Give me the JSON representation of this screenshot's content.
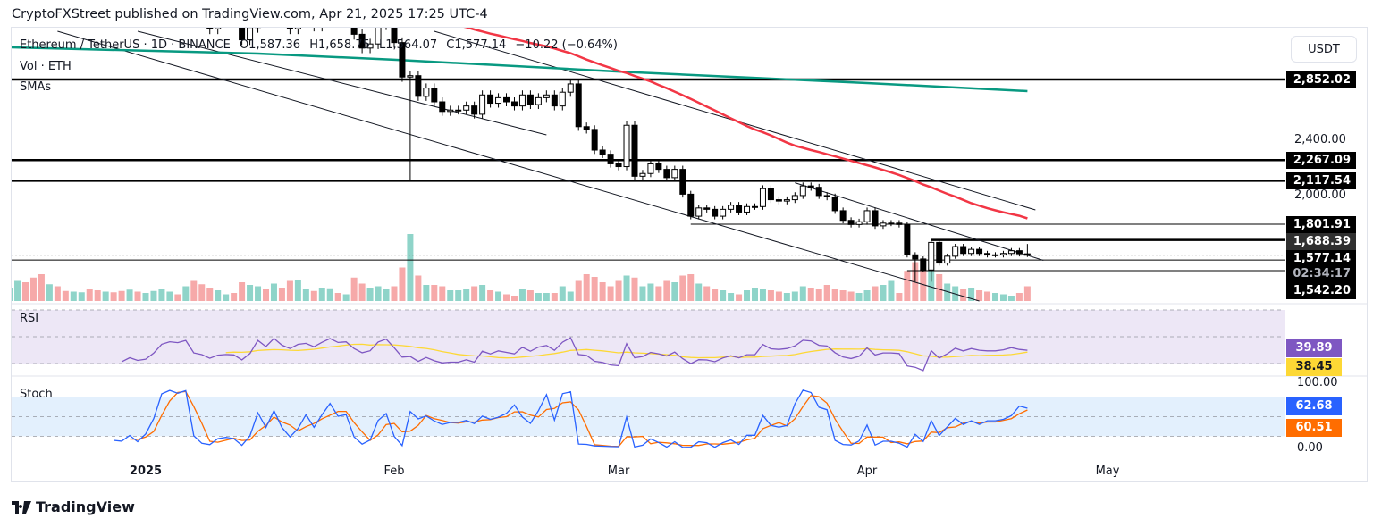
{
  "publisher_line": "CryptoFXStreet published on TradingView.com, Apr 21, 2025 17:25 UTC-4",
  "legend": {
    "symbol": "Ethereum / TetherUS · 1D · BINANCE",
    "open": "O1,587.36",
    "high": "H1,658.75",
    "low": "L1,564.07",
    "close": "C1,577.14",
    "change": "−10.22 (−0.64%)",
    "volume": "Vol · ETH",
    "smas": "SMAs",
    "rsi": "RSI",
    "stoch": "Stoch"
  },
  "currency_button": "USDT",
  "brand": "TradingView",
  "price_ticks": [
    "2,400.00",
    "2,000.00"
  ],
  "price_labels": [
    {
      "text": "2,852.02",
      "price": 2852.02,
      "style": "dark"
    },
    {
      "text": "2,267.09",
      "price": 2267.09,
      "style": "dark"
    },
    {
      "text": "2,117.54",
      "price": 2117.54,
      "style": "dark"
    },
    {
      "text": "1,801.91",
      "price": 1801.91,
      "style": "dark"
    },
    {
      "text": "1,688.39",
      "price": 1688.39,
      "style": "grey"
    },
    {
      "text": "1,577.14",
      "price": 1577.14,
      "style": "dark"
    },
    {
      "text": "02:34:17",
      "price": 1577.14,
      "style": "countdown"
    },
    {
      "text": "1,542.20",
      "price": 1542.2,
      "style": "dark"
    }
  ],
  "rsi_labels": {
    "rsi": "39.89",
    "rsi_ma": "38.45"
  },
  "stoch_labels": {
    "top": "100.00",
    "k": "62.68",
    "d": "60.51",
    "bottom": "0.00"
  },
  "time_axis": [
    {
      "label": "2025",
      "date": "2025-01-01",
      "bold": true
    },
    {
      "label": "Feb",
      "date": "2025-02-01"
    },
    {
      "label": "Mar",
      "date": "2025-03-01"
    },
    {
      "label": "Apr",
      "date": "2025-04-01"
    },
    {
      "label": "May",
      "date": "2025-05-01"
    }
  ],
  "colors": {
    "up_volume": "#8fd4c9",
    "down_volume": "#f6a9a9",
    "sma50": "#f23645",
    "sma200": "#089981",
    "rsi": "#7e57c2",
    "rsi_ma": "#fdd835",
    "stoch_k": "#2962ff",
    "stoch_d": "#ff6d00",
    "rsi_band": "#ede7f6",
    "stoch_band": "#e3f0fd"
  },
  "chart_data": {
    "type": "candlestick",
    "symbol": "ETHUSDT",
    "interval": "1D",
    "scale": "linear",
    "months": [
      {
        "month": "2024-12",
        "first_day": 15,
        "close": [
          3960,
          4000,
          3890,
          3630,
          3420,
          3630,
          3330,
          3290,
          3420,
          3490,
          3480,
          3330,
          3390,
          3360,
          3350,
          3420,
          3330
        ],
        "volume": [
          20,
          30,
          28,
          35,
          40,
          25,
          22,
          15,
          14,
          13,
          18,
          16,
          14,
          13,
          15,
          17,
          14
        ]
      },
      {
        "month": "2025-01",
        "first_day": 1,
        "close": [
          3350,
          3450,
          3610,
          3660,
          3640,
          3680,
          3380,
          3330,
          3220,
          3270,
          3280,
          3270,
          3140,
          3230,
          3450,
          3310,
          3470,
          3310,
          3220,
          3300,
          3320,
          3240,
          3320,
          3390,
          3310,
          3320,
          3180,
          3080,
          3110,
          3250,
          3300
        ],
        "volume": [
          12,
          15,
          18,
          14,
          10,
          22,
          30,
          25,
          20,
          16,
          10,
          12,
          28,
          24,
          22,
          18,
          26,
          20,
          30,
          32,
          18,
          15,
          20,
          19,
          12,
          10,
          35,
          26,
          20,
          22,
          18
        ]
      },
      {
        "month": "2025-02",
        "first_day": 1,
        "close": [
          3120,
          2870,
          2880,
          2730,
          2790,
          2690,
          2620,
          2630,
          2630,
          2660,
          2600,
          2740,
          2680,
          2720,
          2690,
          2660,
          2740,
          2670,
          2720,
          2740,
          2660,
          2760,
          2820,
          2510,
          2490,
          2340,
          2310,
          2240
        ],
        "volume": [
          22,
          50,
          100,
          38,
          24,
          24,
          22,
          16,
          16,
          18,
          22,
          24,
          16,
          14,
          10,
          8,
          18,
          16,
          12,
          12,
          12,
          22,
          14,
          30,
          40,
          36,
          28,
          22
        ]
      },
      {
        "month": "2025-03",
        "first_day": 1,
        "close": [
          2220,
          2520,
          2150,
          2170,
          2240,
          2200,
          2140,
          2200,
          2020,
          1860,
          1920,
          1910,
          1860,
          1910,
          1940,
          1890,
          1930,
          1930,
          2060,
          1980,
          1970,
          1980,
          2010,
          2080,
          2070,
          2010,
          2000,
          1900,
          1830,
          1800,
          1820
        ],
        "volume": [
          30,
          38,
          35,
          22,
          26,
          22,
          30,
          28,
          38,
          40,
          26,
          22,
          18,
          16,
          12,
          10,
          16,
          20,
          18,
          16,
          14,
          12,
          14,
          22,
          20,
          18,
          24,
          18,
          16,
          14,
          12
        ]
      },
      {
        "month": "2025-04",
        "first_day": 1,
        "close": [
          1900,
          1790,
          1810,
          1810,
          1800,
          1580,
          1550,
          1470,
          1670,
          1520,
          1570,
          1640,
          1590,
          1620,
          1590,
          1580,
          1580,
          1590,
          1610,
          1587.36,
          1577.14
        ],
        "volume": [
          16,
          22,
          24,
          30,
          12,
          45,
          58,
          48,
          50,
          40,
          26,
          22,
          18,
          20,
          16,
          14,
          12,
          10,
          8,
          12,
          22
        ]
      }
    ],
    "overrides": {
      "2025-02-03": {
        "low": 2120
      },
      "2025-04-07": {
        "low": 1385
      },
      "2025-04-09": {
        "low": 1385
      },
      "2025-04-21": {
        "open": 1587.36,
        "high": 1658.75,
        "low": 1564.07,
        "close": 1577.14
      }
    },
    "sma200": [
      [
        "2024-12-15",
        3085
      ],
      [
        "2025-01-15",
        3040
      ],
      [
        "2025-02-01",
        2995
      ],
      [
        "2025-03-01",
        2910
      ],
      [
        "2025-04-01",
        2826
      ],
      [
        "2025-04-21",
        2768
      ]
    ],
    "horizontal_levels": [
      {
        "price": 2852.02,
        "from": null,
        "weight": "thick"
      },
      {
        "price": 2267.09,
        "from": null,
        "weight": "thick"
      },
      {
        "price": 2117.54,
        "from": null,
        "weight": "thick"
      },
      {
        "price": 1801.91,
        "from": "2025-03-10",
        "weight": "thin"
      },
      {
        "price": 1688.39,
        "from": "2025-04-09",
        "weight": "thick"
      },
      {
        "price": 1542.2,
        "from": null,
        "weight": "thin"
      },
      {
        "price": 1465,
        "from": "2025-04-06",
        "weight": "thin"
      }
    ],
    "trendlines": [
      {
        "from": [
          "2024-12-21",
          3202
        ],
        "to": [
          "2025-04-15",
          1245
        ]
      },
      {
        "from": [
          "2024-12-31",
          3202
        ],
        "to": [
          "2025-02-20",
          2450
        ]
      },
      {
        "from": [
          "2025-02-06",
          3202
        ],
        "to": [
          "2025-04-22",
          1906
        ]
      },
      {
        "from": [
          "2025-03-23",
          2103
        ],
        "to": [
          "2025-04-23",
          1540
        ]
      }
    ],
    "rsi": {
      "length": 14,
      "ma_length": 14,
      "levels": [
        70,
        50,
        30
      ]
    },
    "stoch": {
      "k": 14,
      "smooth": 1,
      "d": 3,
      "levels": [
        80,
        50,
        20
      ],
      "range": [
        0,
        100
      ]
    }
  }
}
